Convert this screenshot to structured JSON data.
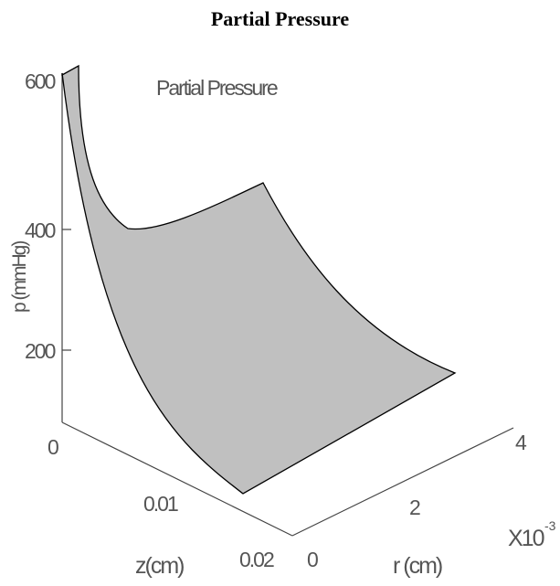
{
  "page_title": "Partial Pressure",
  "chart_data": {
    "type": "surface",
    "title": "Partial Pressure",
    "inner_title": "Partial Pressure",
    "zlabel": "p (mmHg)",
    "xlabel": "z(cm)",
    "ylabel": "r (cm)",
    "r_multiplier": "X10",
    "r_multiplier_exponent": "-3",
    "p_ticks": [
      "200",
      "400",
      "600"
    ],
    "z_ticks": [
      "0",
      "0.01",
      "0.02"
    ],
    "r_ticks": [
      "0",
      "2",
      "4"
    ],
    "surface_color": "#c0c0c0",
    "edge_color": "#000000",
    "axis_color": "#444444",
    "text_color": "#555555",
    "grid": false
  }
}
